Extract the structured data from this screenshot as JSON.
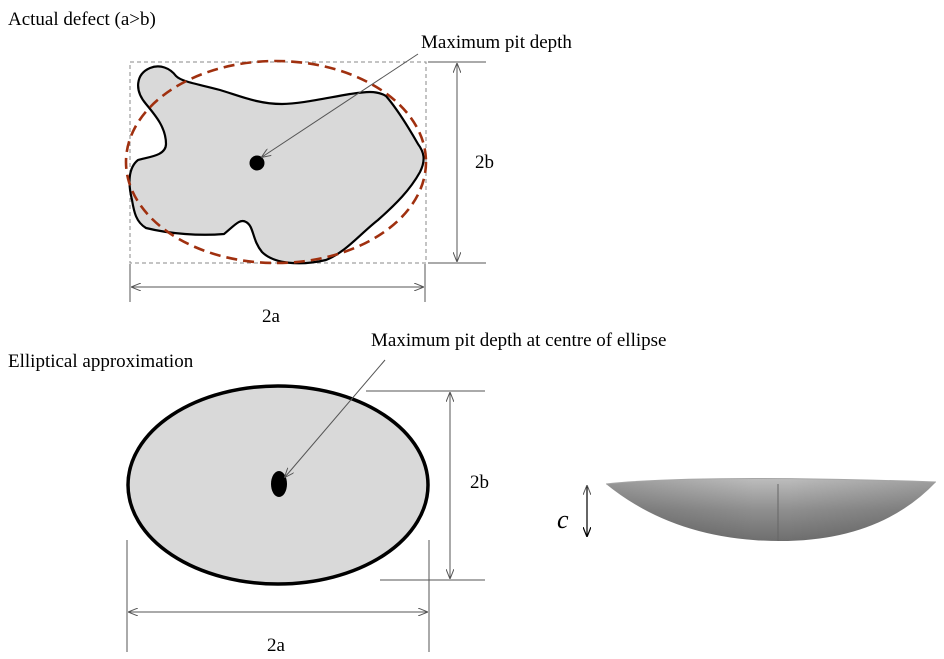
{
  "top_figure": {
    "title": "Actual defect (a>b)",
    "callout": "Maximum pit depth",
    "width_label": "2a",
    "height_label": "2b"
  },
  "bottom_figure": {
    "title": "Elliptical approximation",
    "callout": "Maximum pit depth at centre of ellipse",
    "width_label": "2a",
    "height_label": "2b"
  },
  "profile_figure": {
    "depth_label": "c"
  },
  "colors": {
    "defect_fill": "#d9d9d9",
    "ellipse_fit_dashed": "#a0300f",
    "outline": "#000000",
    "bounding_box_dashed": "#8a8a8a",
    "bowl_gray": "#8a8a8a"
  }
}
